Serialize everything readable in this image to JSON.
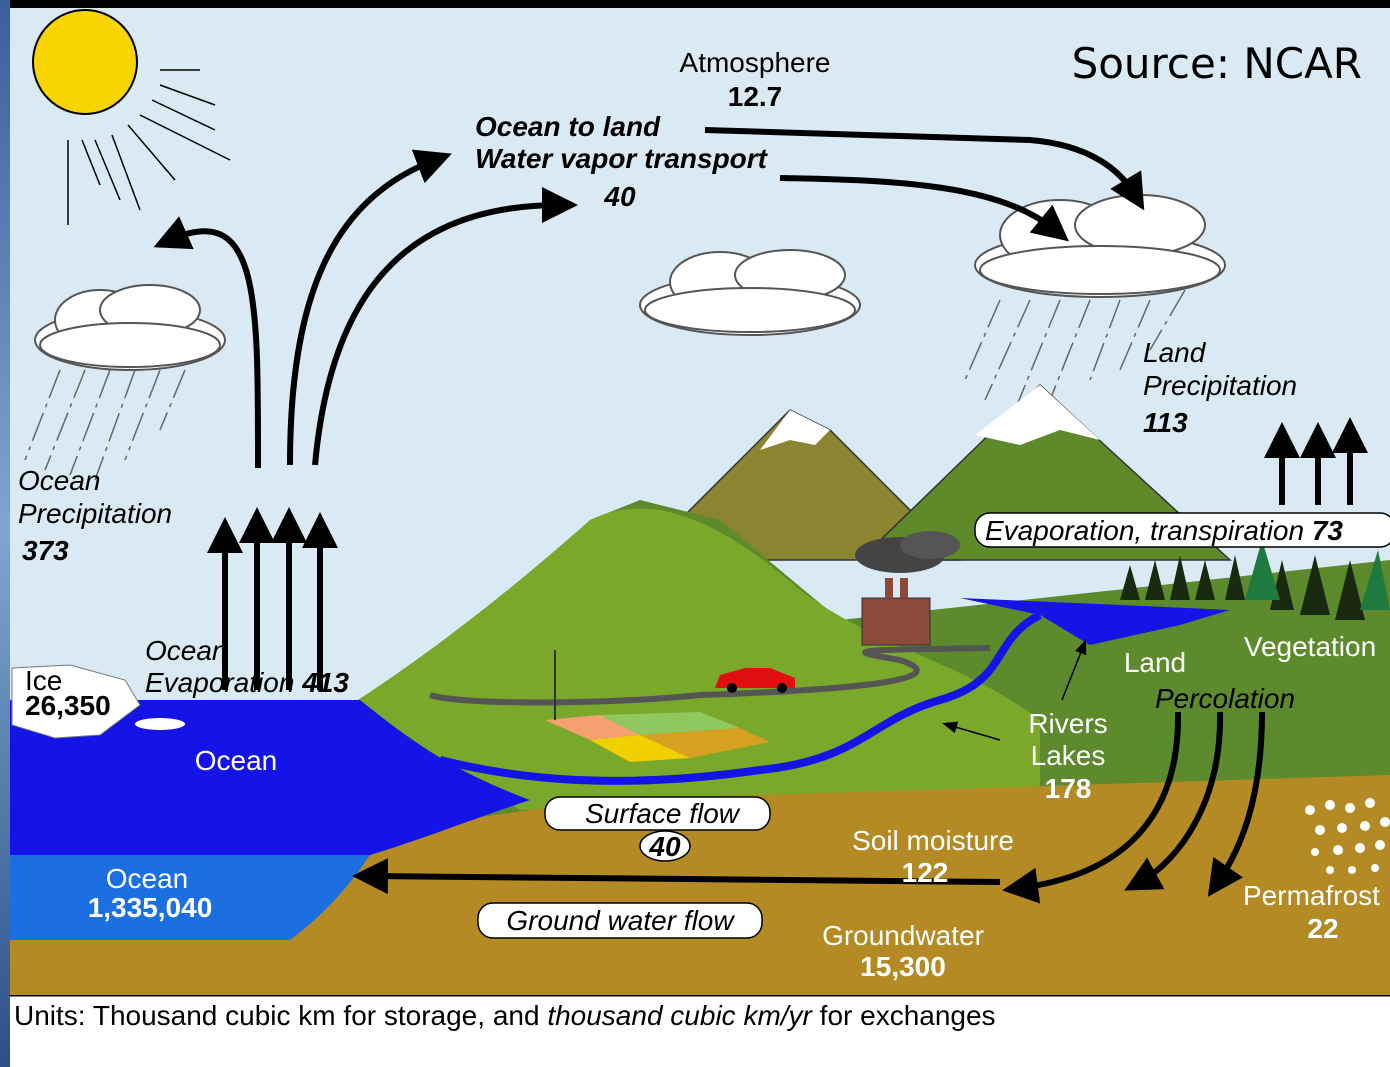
{
  "atmosphere": {
    "label": "Atmosphere",
    "value": "12.7"
  },
  "ocean_to_land": {
    "label": [
      "Ocean to land",
      "Water vapor transport"
    ],
    "value": "40"
  },
  "source": "Source: NCAR",
  "land_precipitation": {
    "label": [
      "Land",
      "Precipitation"
    ],
    "value": "113"
  },
  "ocean_precipitation": {
    "label": [
      "Ocean",
      "Precipitation"
    ],
    "value": "373"
  },
  "evapotranspiration": {
    "label": "Evaporation, transpiration",
    "value": "73"
  },
  "ocean_evaporation": {
    "label": [
      "Ocean",
      "Evaporation"
    ],
    "value": "413"
  },
  "ice": {
    "label": "Ice",
    "value": "26,350"
  },
  "ocean_surface": "Ocean",
  "land": "Land",
  "vegetation": "Vegetation",
  "percolation": "Percolation",
  "rivers_lakes": {
    "label": [
      "Rivers",
      "Lakes"
    ],
    "value": "178"
  },
  "surface_flow": {
    "label": "Surface flow",
    "value": "40"
  },
  "soil_moisture": {
    "label": "Soil moisture",
    "value": "122"
  },
  "ocean_storage": {
    "label": "Ocean",
    "value": "1,335,040"
  },
  "ground_water_flow": "Ground water flow",
  "groundwater": {
    "label": "Groundwater",
    "value": "15,300"
  },
  "permafrost": {
    "label": "Permafrost",
    "value": "22"
  },
  "units": [
    "Units: Thousand cubic km for storage, and ",
    "thousand cubic km/yr",
    " for exchanges"
  ]
}
